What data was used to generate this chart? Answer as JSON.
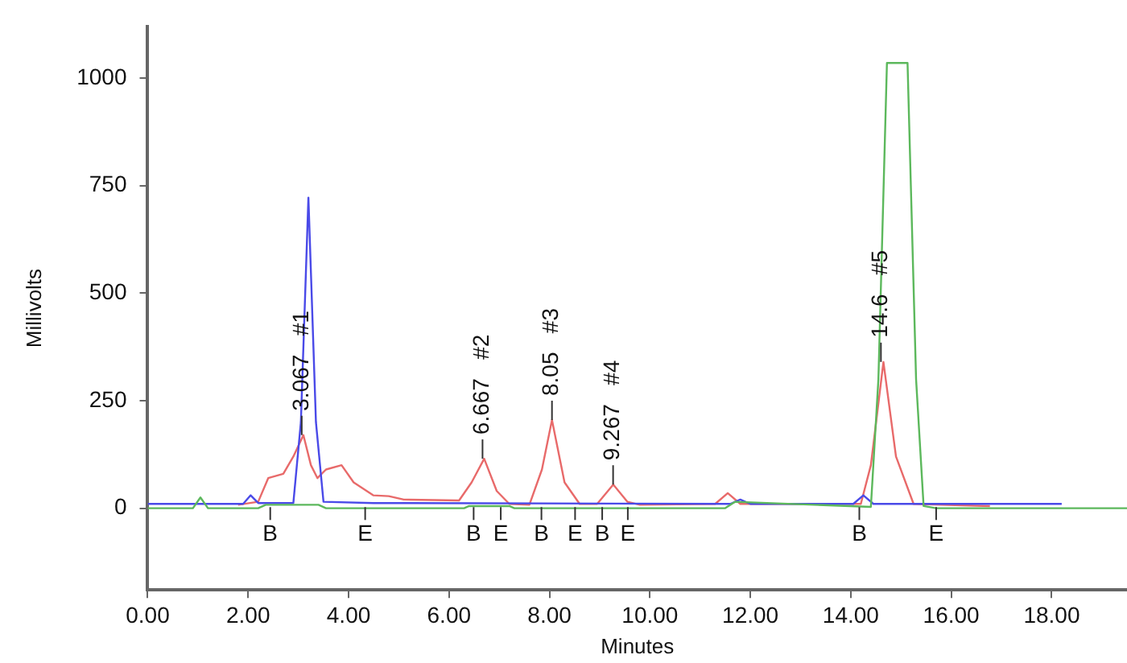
{
  "chart_data": {
    "type": "line",
    "xlabel": "Minutes",
    "ylabel": "Millivolts",
    "xlim": [
      0,
      19.5
    ],
    "ylim": [
      -190,
      1120
    ],
    "xticks": [
      {
        "value": 0,
        "label": "0.00"
      },
      {
        "value": 2,
        "label": "2.00"
      },
      {
        "value": 4,
        "label": "4.00"
      },
      {
        "value": 6,
        "label": "6.00"
      },
      {
        "value": 8,
        "label": "8.00"
      },
      {
        "value": 10,
        "label": "10.00"
      },
      {
        "value": 12,
        "label": "12.00"
      },
      {
        "value": 14,
        "label": "14.00"
      },
      {
        "value": 16,
        "label": "16.00"
      },
      {
        "value": 18,
        "label": "18.00"
      }
    ],
    "yticks": [
      0,
      250,
      500,
      750,
      1000
    ],
    "grid": false,
    "legend": false,
    "marker": "none",
    "line_style": "solid",
    "series": [
      {
        "color": "#5cb85c",
        "x": [
          0,
          0.9,
          1.05,
          1.2,
          2.2,
          2.35,
          3.4,
          3.55,
          6.3,
          6.4,
          7.2,
          7.3,
          11.5,
          11.7,
          14.4,
          14.55,
          14.72,
          15.13,
          15.3,
          15.45,
          15.7,
          19.5
        ],
        "values": [
          0,
          0,
          25,
          0,
          0,
          8,
          8,
          0,
          0,
          5,
          5,
          0,
          0,
          15,
          3,
          300,
          1035,
          1035,
          300,
          5,
          0,
          0
        ]
      },
      {
        "color": "#4a4ae8",
        "x": [
          0,
          1.9,
          2.05,
          2.2,
          2.9,
          3.05,
          3.2,
          3.35,
          3.5,
          4.5,
          11.6,
          11.8,
          12.0,
          14.05,
          14.25,
          14.45,
          18.2
        ],
        "values": [
          10,
          10,
          30,
          12,
          12,
          200,
          722,
          200,
          15,
          12,
          10,
          20,
          10,
          10,
          30,
          10,
          10
        ]
      },
      {
        "color": "#e86a6a",
        "x": [
          1.8,
          2.2,
          2.4,
          2.7,
          2.9,
          3.1,
          3.25,
          3.38,
          3.55,
          3.86,
          4.1,
          4.49,
          4.8,
          5.1,
          6.2,
          6.45,
          6.7,
          6.95,
          7.2,
          7.6,
          7.85,
          8.05,
          8.3,
          8.6,
          8.95,
          9.27,
          9.55,
          9.8,
          11.3,
          11.55,
          11.8,
          14.2,
          14.4,
          14.65,
          14.9,
          15.25,
          16.77
        ],
        "values": [
          8,
          15,
          70,
          80,
          120,
          170,
          100,
          70,
          90,
          100,
          60,
          30,
          28,
          20,
          18,
          60,
          115,
          40,
          10,
          8,
          90,
          205,
          60,
          10,
          10,
          55,
          15,
          8,
          10,
          35,
          10,
          10,
          100,
          340,
          120,
          10,
          5
        ]
      }
    ],
    "annotations": [
      {
        "text": "3.067   #1",
        "x": 3.067,
        "y": 170
      },
      {
        "text": "6.667   #2",
        "x": 6.667,
        "y": 115
      },
      {
        "text": "8.05   #3",
        "x": 8.05,
        "y": 205
      },
      {
        "text": "9.267   #4",
        "x": 9.267,
        "y": 55
      },
      {
        "text": "14.6   #5",
        "x": 14.6,
        "y": 340
      },
      {
        "text": "B",
        "x": 2.44,
        "y": 10
      },
      {
        "text": "E",
        "x": 4.33,
        "y": 10
      },
      {
        "text": "B",
        "x": 6.49,
        "y": 10
      },
      {
        "text": "E",
        "x": 7.03,
        "y": 10
      },
      {
        "text": "B",
        "x": 7.84,
        "y": 10
      },
      {
        "text": "E",
        "x": 8.51,
        "y": 10
      },
      {
        "text": "B",
        "x": 9.05,
        "y": 10
      },
      {
        "text": "E",
        "x": 9.56,
        "y": 10
      },
      {
        "text": "B",
        "x": 14.17,
        "y": 10
      },
      {
        "text": "E",
        "x": 15.7,
        "y": 10
      }
    ]
  }
}
